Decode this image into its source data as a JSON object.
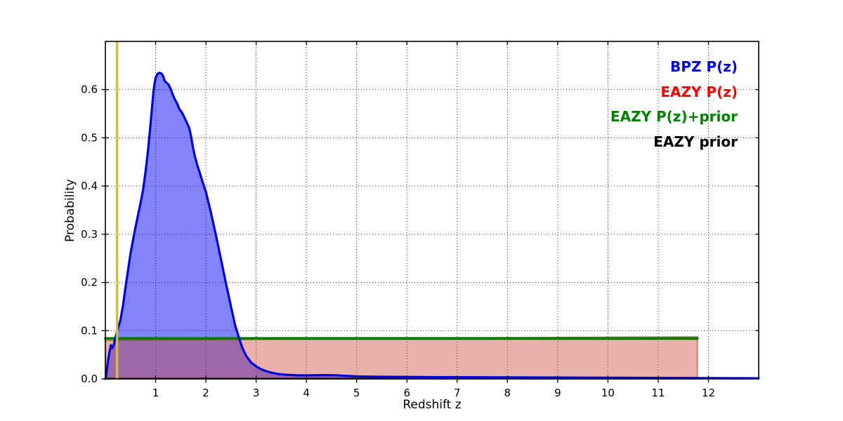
{
  "figure": {
    "background": "#ffffff"
  },
  "legend": {
    "position": "upper-right",
    "items": [
      {
        "label": "BPZ P(z)",
        "color": "#0000ff"
      },
      {
        "label": "EAZY P(z)",
        "color": "#ff0000"
      },
      {
        "label": "EAZY P(z)+prior",
        "color": "#008000"
      },
      {
        "label": "EAZY prior",
        "color": "#000000"
      }
    ]
  },
  "chart_data": {
    "type": "line",
    "title": "",
    "xlabel": "Redshift z",
    "ylabel": "Probability",
    "xlim": [
      0,
      13
    ],
    "ylim": [
      0,
      0.7
    ],
    "xticks": [
      1,
      2,
      3,
      4,
      5,
      6,
      7,
      8,
      9,
      10,
      11,
      12
    ],
    "yticks": [
      0,
      0.1,
      0.2,
      0.3,
      0.4,
      0.5,
      0.6
    ],
    "grid": true,
    "grid_style": "dotted",
    "legend_position": "upper right",
    "vline": {
      "x": 0.232,
      "color": "#d2c31b",
      "width": 3.5,
      "name": "marker-line"
    },
    "series": [
      {
        "name": "BPZ P(z)",
        "color": "#0000dd",
        "fill": "rgba(10,10,245,0.5)",
        "width": 3.2,
        "stroke_order": 10,
        "close_fill": false,
        "points": [
          [
            0.0,
            0.0
          ],
          [
            0.02,
            0.01
          ],
          [
            0.05,
            0.035
          ],
          [
            0.08,
            0.055
          ],
          [
            0.11,
            0.07
          ],
          [
            0.14,
            0.064
          ],
          [
            0.17,
            0.072
          ],
          [
            0.2,
            0.086
          ],
          [
            0.23,
            0.098
          ],
          [
            0.26,
            0.108
          ],
          [
            0.3,
            0.122
          ],
          [
            0.35,
            0.152
          ],
          [
            0.4,
            0.19
          ],
          [
            0.45,
            0.225
          ],
          [
            0.5,
            0.26
          ],
          [
            0.55,
            0.288
          ],
          [
            0.6,
            0.315
          ],
          [
            0.65,
            0.34
          ],
          [
            0.7,
            0.365
          ],
          [
            0.75,
            0.392
          ],
          [
            0.8,
            0.43
          ],
          [
            0.85,
            0.475
          ],
          [
            0.9,
            0.53
          ],
          [
            0.93,
            0.565
          ],
          [
            0.96,
            0.6
          ],
          [
            1.0,
            0.625
          ],
          [
            1.04,
            0.633
          ],
          [
            1.08,
            0.635
          ],
          [
            1.12,
            0.633
          ],
          [
            1.15,
            0.628
          ],
          [
            1.18,
            0.618
          ],
          [
            1.22,
            0.614
          ],
          [
            1.26,
            0.61
          ],
          [
            1.3,
            0.601
          ],
          [
            1.34,
            0.59
          ],
          [
            1.38,
            0.58
          ],
          [
            1.43,
            0.571
          ],
          [
            1.47,
            0.56
          ],
          [
            1.52,
            0.553
          ],
          [
            1.56,
            0.545
          ],
          [
            1.6,
            0.536
          ],
          [
            1.64,
            0.527
          ],
          [
            1.67,
            0.52
          ],
          [
            1.7,
            0.506
          ],
          [
            1.74,
            0.482
          ],
          [
            1.78,
            0.462
          ],
          [
            1.83,
            0.443
          ],
          [
            1.88,
            0.427
          ],
          [
            1.93,
            0.41
          ],
          [
            2.0,
            0.388
          ],
          [
            2.1,
            0.345
          ],
          [
            2.2,
            0.298
          ],
          [
            2.3,
            0.248
          ],
          [
            2.4,
            0.198
          ],
          [
            2.5,
            0.15
          ],
          [
            2.58,
            0.112
          ],
          [
            2.65,
            0.088
          ],
          [
            2.72,
            0.066
          ],
          [
            2.8,
            0.048
          ],
          [
            2.9,
            0.034
          ],
          [
            3.0,
            0.026
          ],
          [
            3.1,
            0.02
          ],
          [
            3.2,
            0.016
          ],
          [
            3.3,
            0.013
          ],
          [
            3.45,
            0.01
          ],
          [
            3.6,
            0.0085
          ],
          [
            3.8,
            0.0075
          ],
          [
            4.0,
            0.0072
          ],
          [
            4.2,
            0.0076
          ],
          [
            4.4,
            0.0078
          ],
          [
            4.6,
            0.0074
          ],
          [
            4.8,
            0.0062
          ],
          [
            5.0,
            0.0052
          ],
          [
            5.3,
            0.0046
          ],
          [
            5.6,
            0.0042
          ],
          [
            6.0,
            0.004
          ],
          [
            6.5,
            0.0037
          ],
          [
            7.0,
            0.0035
          ],
          [
            7.5,
            0.0033
          ],
          [
            8.0,
            0.0031
          ],
          [
            8.5,
            0.0029
          ],
          [
            9.0,
            0.0027
          ],
          [
            9.5,
            0.0026
          ],
          [
            10.0,
            0.0024
          ],
          [
            10.5,
            0.0022
          ],
          [
            11.0,
            0.0021
          ],
          [
            11.5,
            0.0019
          ],
          [
            12.0,
            0.0017
          ],
          [
            12.5,
            0.0015
          ],
          [
            13.0,
            0.0014
          ]
        ]
      },
      {
        "name": "EAZY P(z)",
        "color": "rgba(200,62,45,0.6)",
        "fill": "rgba(197,59,44,0.40)",
        "width": 2,
        "stroke_order": 1,
        "close_fill": true,
        "points": [
          [
            0.0,
            0.0798
          ],
          [
            1.5,
            0.0812
          ],
          [
            3.0,
            0.0822
          ],
          [
            4.5,
            0.0832
          ],
          [
            6.0,
            0.0842
          ],
          [
            7.5,
            0.0852
          ],
          [
            9.0,
            0.086
          ],
          [
            10.5,
            0.0868
          ],
          [
            11.78,
            0.0874
          ]
        ]
      },
      {
        "name": "EAZY P(z)+prior",
        "color": "#008000",
        "fill": null,
        "width": 4,
        "stroke_order": 2,
        "close_fill": false,
        "points": [
          [
            0.0,
            0.0838
          ],
          [
            11.78,
            0.0838
          ]
        ]
      },
      {
        "name": "EAZY prior",
        "color": "#000000",
        "fill": null,
        "width": 1.8,
        "stroke_order": 3,
        "close_fill": false,
        "points": [
          [
            0.0,
            0.0008
          ],
          [
            11.78,
            0.0008
          ]
        ]
      }
    ]
  }
}
